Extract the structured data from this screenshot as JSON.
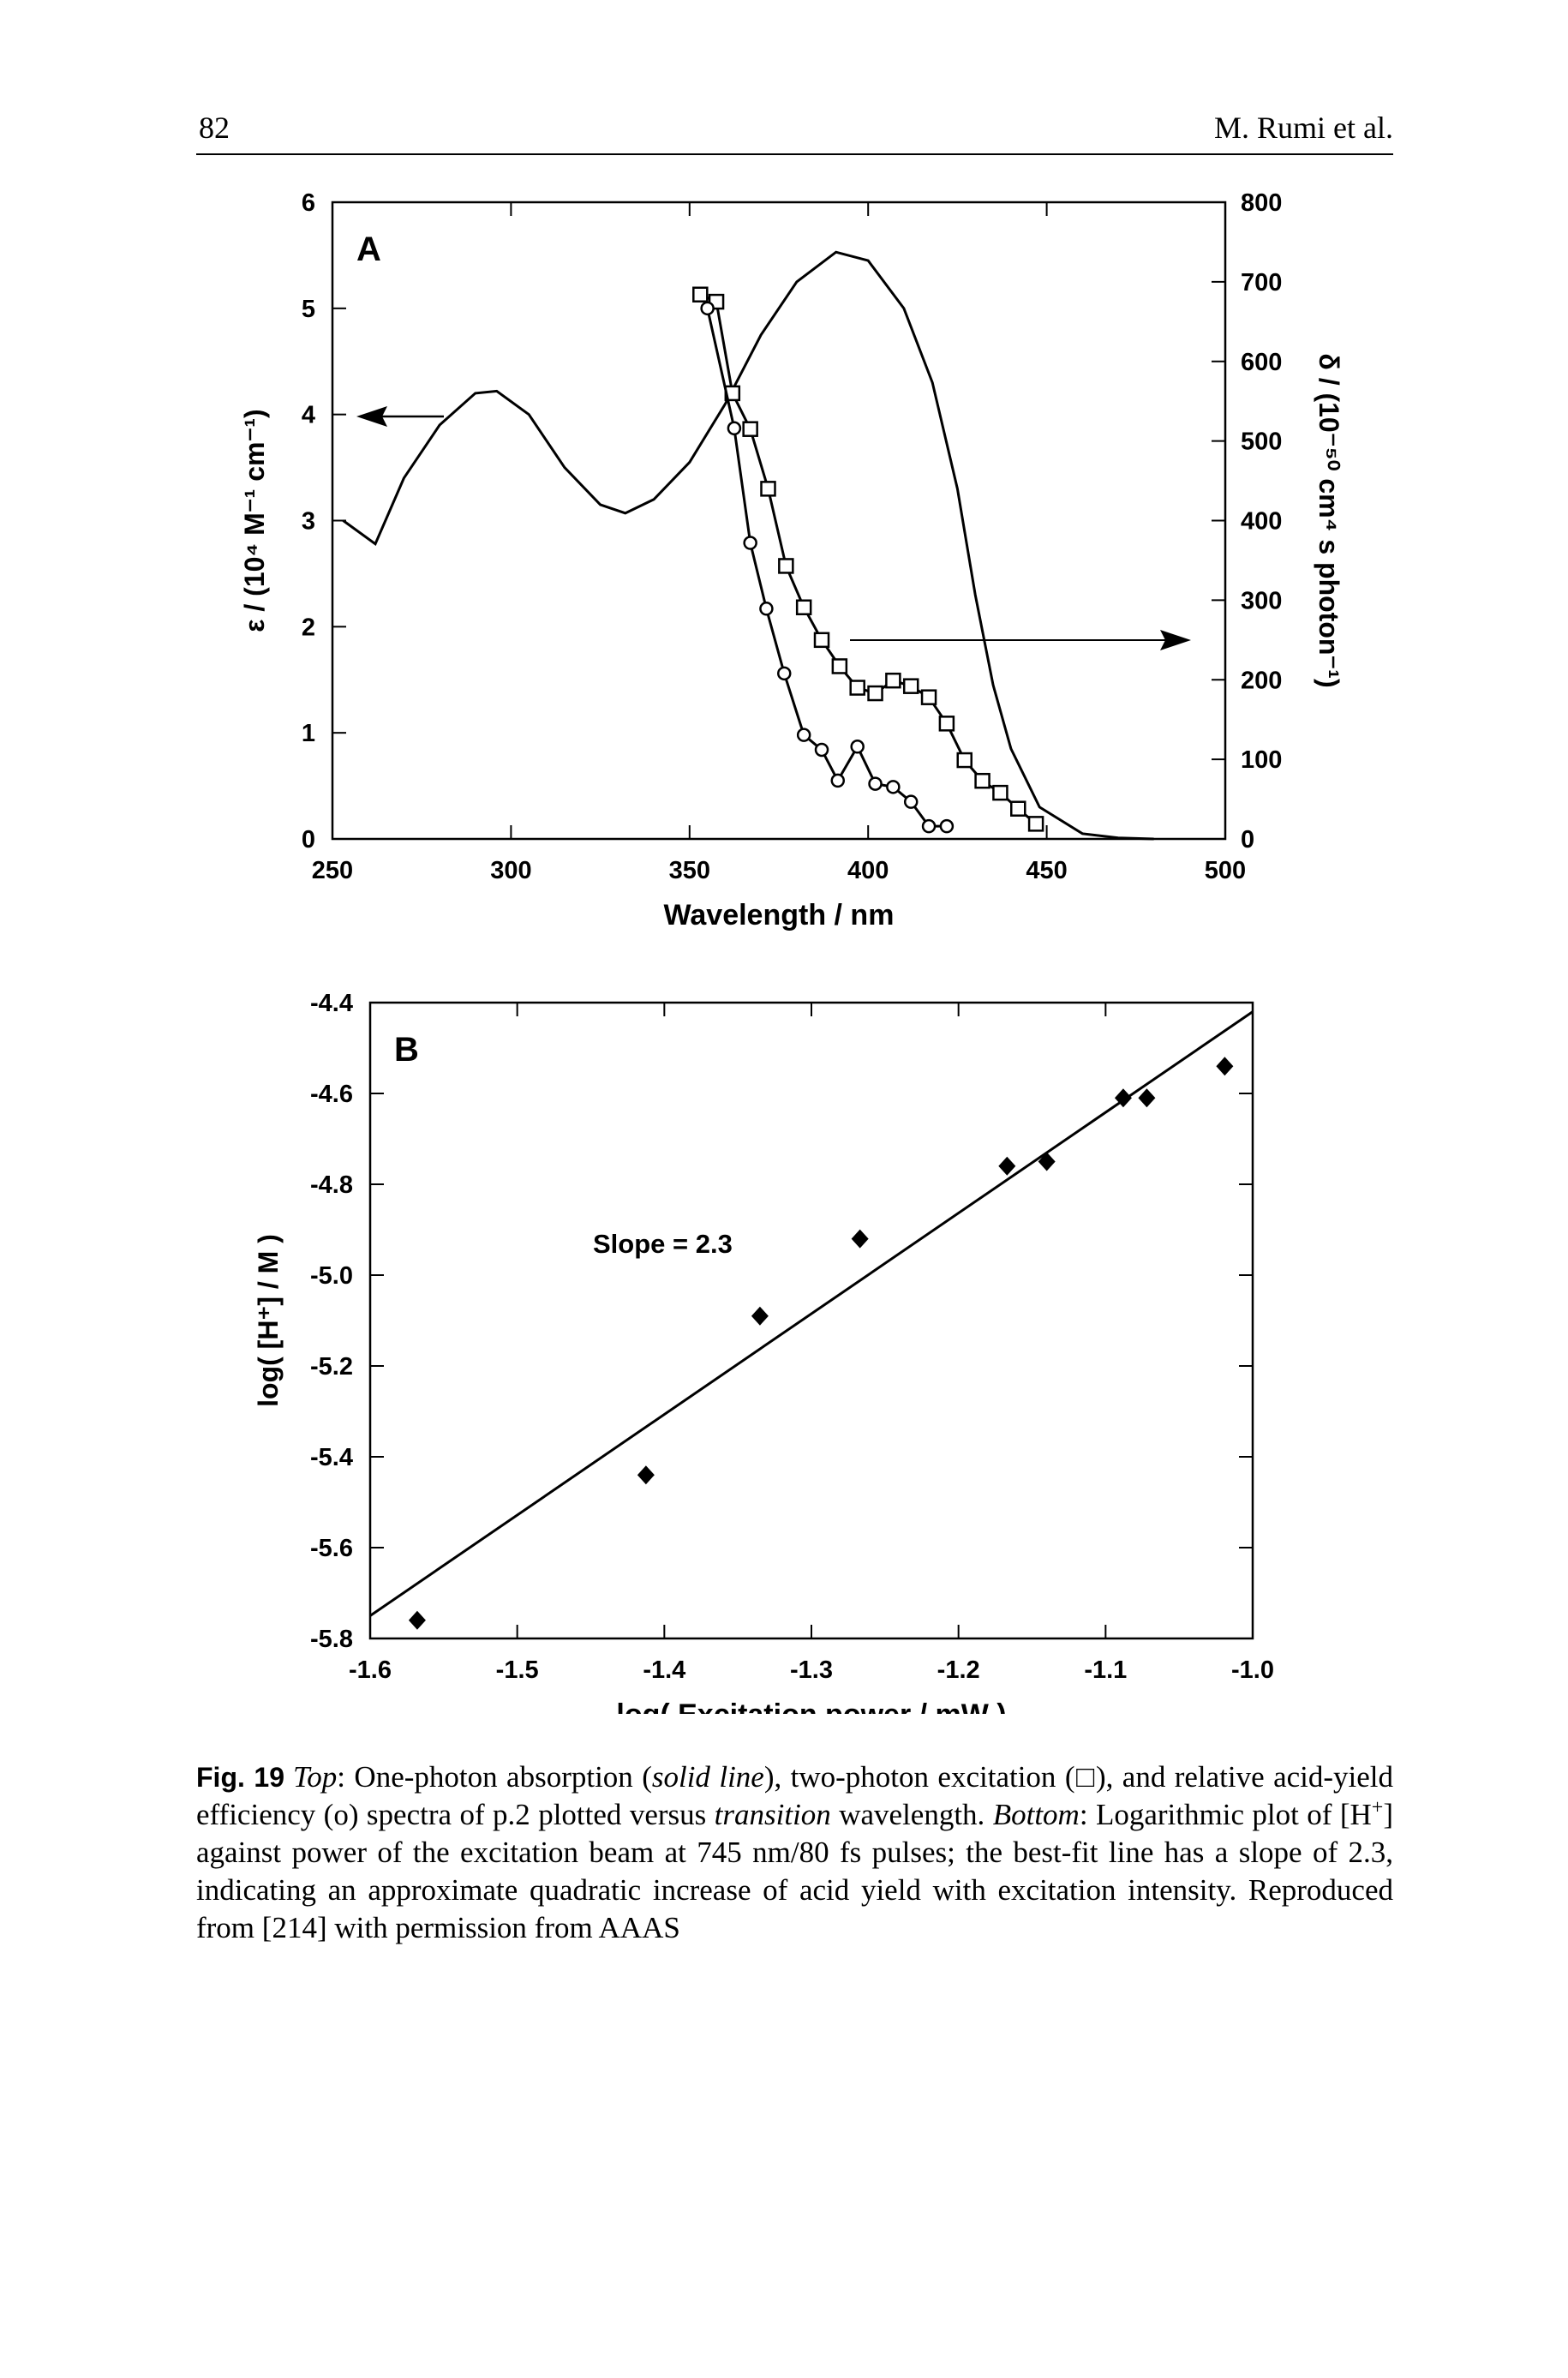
{
  "header": {
    "page_number": "82",
    "running_head": "M. Rumi et al."
  },
  "chart_data": [
    {
      "type": "line",
      "panel_label": "A",
      "xlabel": "Wavelength / nm",
      "ylabel": "ε / (10⁴ M⁻¹ cm⁻¹)",
      "y2label": "δ / (10⁻⁵⁰ cm⁴ s photon⁻¹)",
      "xlim": [
        250,
        500
      ],
      "xticks": [
        250,
        300,
        350,
        400,
        450,
        500
      ],
      "ylim": [
        0,
        6
      ],
      "yticks": [
        0,
        1,
        2,
        3,
        4,
        5,
        6
      ],
      "y2lim": [
        0,
        800
      ],
      "y2ticks": [
        0,
        100,
        200,
        300,
        400,
        500,
        600,
        700,
        800
      ],
      "series": [
        {
          "color": "#000000",
          "line": true,
          "marker": "none",
          "x": [
            253,
            262,
            270,
            280,
            290,
            296,
            305,
            315,
            325,
            332,
            340,
            350,
            360,
            370,
            380,
            391,
            400,
            410,
            418,
            425,
            430,
            435,
            440,
            448,
            460,
            470,
            480
          ],
          "values": [
            3.0,
            2.78,
            3.4,
            3.9,
            4.2,
            4.22,
            4.0,
            3.5,
            3.15,
            3.07,
            3.2,
            3.55,
            4.1,
            4.75,
            5.25,
            5.53,
            5.45,
            5.0,
            4.3,
            3.3,
            2.3,
            1.45,
            0.85,
            0.3,
            0.05,
            0.01,
            0
          ]
        },
        {
          "color": "#000000",
          "line": true,
          "marker": "square",
          "axis": "y2",
          "x": [
            353,
            357.5,
            362,
            367,
            372,
            377,
            382,
            387,
            392,
            397,
            402,
            407,
            412,
            417,
            422,
            427,
            432,
            437,
            442,
            447
          ],
          "values": [
            684,
            675,
            560,
            515,
            440,
            343,
            291,
            250,
            217,
            190,
            183,
            199,
            192,
            178,
            145,
            99,
            73,
            58,
            38,
            19
          ]
        },
        {
          "color": "#000000",
          "line": true,
          "marker": "circle",
          "x": [
            355,
            362.5,
            367,
            371.5,
            376.5,
            382,
            387,
            391.5,
            397,
            402,
            407,
            412,
            417,
            422
          ],
          "values": [
            5.0,
            3.87,
            2.79,
            2.17,
            1.56,
            0.98,
            0.84,
            0.55,
            0.87,
            0.52,
            0.49,
            0.35,
            0.12,
            0.12
          ]
        }
      ]
    },
    {
      "type": "scatter",
      "panel_label": "B",
      "xlabel": "log( Excitation power / mW )",
      "ylabel": "log( [H⁺] / M )",
      "annotation": "Slope = 2.3",
      "xlim": [
        -1.6,
        -1.0
      ],
      "xticks": [
        -1.6,
        -1.5,
        -1.4,
        -1.3,
        -1.2,
        -1.1,
        {
          "value": -1,
          "label": "-1.0"
        }
      ],
      "ylim": [
        -5.8,
        -4.4
      ],
      "yticks": [
        -4.4,
        -4.6,
        -4.8,
        {
          "value": -5,
          "label": "-5.0"
        },
        -5.2,
        -5.4,
        -5.6,
        -5.8
      ],
      "series": [
        {
          "color": "#000000",
          "line": false,
          "marker": "diamond",
          "x": [
            -1.568,
            -1.4125,
            -1.335,
            -1.267,
            -1.167,
            -1.14,
            -1.088,
            -1.072,
            -1.019
          ],
          "values": [
            -5.76,
            -5.44,
            -5.09,
            -4.92,
            -4.76,
            -4.75,
            -4.61,
            -4.61,
            -4.54
          ]
        },
        {
          "color": "#000000",
          "line": true,
          "marker": "none",
          "x": [
            -1.6,
            -1.0
          ],
          "values": [
            -5.75,
            -4.42
          ]
        }
      ]
    }
  ],
  "caption": {
    "label": "Fig. 19",
    "segments": [
      {
        "text": "Top",
        "italic": true
      },
      {
        "text": ": One-photon absorption ("
      },
      {
        "text": "solid line",
        "italic": true
      },
      {
        "text": "), two-photon excitation (□), and relative acid-yield efficiency (ο) spectra of p.2 plotted versus "
      },
      {
        "text": "transition",
        "italic": true
      },
      {
        "text": " wavelength. "
      },
      {
        "text": "Bottom",
        "italic": true
      },
      {
        "text": ": Logarithmic plot of [H"
      },
      {
        "text": "+",
        "sup": true
      },
      {
        "text": "] against power of the excitation beam at 745 nm/80 fs pulses; the best-fit line has a slope of 2.3, indicating an approximate quadratic increase of acid yield with excitation intensity. Reproduced from [214] with permission from AAAS"
      }
    ]
  }
}
